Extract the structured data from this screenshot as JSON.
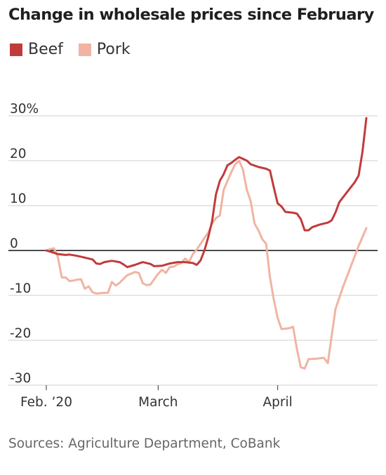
{
  "chart_data": {
    "type": "line",
    "title": "Change in wholesale prices since February",
    "xlabel": "",
    "ylabel": "",
    "x_range": [
      "2020-02-01",
      "2020-04-26"
    ],
    "xticks": [
      {
        "date": "2020-02-01",
        "label": "Feb. ’20"
      },
      {
        "date": "2020-03-01",
        "label": "March"
      },
      {
        "date": "2020-04-01",
        "label": "April"
      }
    ],
    "ylim": [
      -30,
      30
    ],
    "yticks": [
      {
        "value": 30,
        "label": "30%"
      },
      {
        "value": 20,
        "label": "20"
      },
      {
        "value": 10,
        "label": "10"
      },
      {
        "value": 0,
        "label": "0"
      },
      {
        "value": -10,
        "label": "-10"
      },
      {
        "value": -20,
        "label": "-20"
      },
      {
        "value": -30,
        "label": "-30"
      }
    ],
    "grid": true,
    "legend_position": "top-left",
    "series": [
      {
        "name": "Beef",
        "color": "#c13b3b",
        "points": [
          [
            "2020-02-01",
            0.0
          ],
          [
            "2020-02-04",
            -0.8
          ],
          [
            "2020-02-06",
            -1.0
          ],
          [
            "2020-02-07",
            -0.9
          ],
          [
            "2020-02-09",
            -1.2
          ],
          [
            "2020-02-11",
            -1.6
          ],
          [
            "2020-02-13",
            -2.0
          ],
          [
            "2020-02-14",
            -2.9
          ],
          [
            "2020-02-15",
            -3.0
          ],
          [
            "2020-02-16",
            -2.6
          ],
          [
            "2020-02-18",
            -2.3
          ],
          [
            "2020-02-20",
            -2.6
          ],
          [
            "2020-02-21",
            -3.1
          ],
          [
            "2020-02-22",
            -3.7
          ],
          [
            "2020-02-24",
            -3.2
          ],
          [
            "2020-02-26",
            -2.6
          ],
          [
            "2020-02-28",
            -3.0
          ],
          [
            "2020-02-29",
            -3.5
          ],
          [
            "2020-03-02",
            -3.4
          ],
          [
            "2020-03-04",
            -2.9
          ],
          [
            "2020-03-06",
            -2.6
          ],
          [
            "2020-03-08",
            -2.6
          ],
          [
            "2020-03-10",
            -2.8
          ],
          [
            "2020-03-11",
            -3.2
          ],
          [
            "2020-03-12",
            -2.2
          ],
          [
            "2020-03-13",
            0.0
          ],
          [
            "2020-03-14",
            3.0
          ],
          [
            "2020-03-15",
            6.5
          ],
          [
            "2020-03-16",
            12.5
          ],
          [
            "2020-03-17",
            15.5
          ],
          [
            "2020-03-18",
            17.0
          ],
          [
            "2020-03-19",
            19.0
          ],
          [
            "2020-03-20",
            19.5
          ],
          [
            "2020-03-21",
            20.2
          ],
          [
            "2020-03-22",
            20.8
          ],
          [
            "2020-03-23",
            20.4
          ],
          [
            "2020-03-24",
            20.0
          ],
          [
            "2020-03-25",
            19.2
          ],
          [
            "2020-03-27",
            18.6
          ],
          [
            "2020-03-29",
            18.2
          ],
          [
            "2020-03-30",
            17.8
          ],
          [
            "2020-03-31",
            14.0
          ],
          [
            "2020-04-01",
            10.5
          ],
          [
            "2020-04-02",
            9.8
          ],
          [
            "2020-04-03",
            8.6
          ],
          [
            "2020-04-05",
            8.4
          ],
          [
            "2020-04-06",
            8.2
          ],
          [
            "2020-04-07",
            7.0
          ],
          [
            "2020-04-08",
            4.5
          ],
          [
            "2020-04-09",
            4.5
          ],
          [
            "2020-04-10",
            5.2
          ],
          [
            "2020-04-12",
            5.8
          ],
          [
            "2020-04-14",
            6.2
          ],
          [
            "2020-04-15",
            6.7
          ],
          [
            "2020-04-16",
            8.5
          ],
          [
            "2020-04-17",
            10.8
          ],
          [
            "2020-04-19",
            13.0
          ],
          [
            "2020-04-21",
            15.2
          ],
          [
            "2020-04-22",
            16.7
          ],
          [
            "2020-04-23",
            22.0
          ],
          [
            "2020-04-24",
            29.5
          ]
        ]
      },
      {
        "name": "Pork",
        "color": "#f0b4a2",
        "points": [
          [
            "2020-02-01",
            0.0
          ],
          [
            "2020-02-02",
            0.3
          ],
          [
            "2020-02-03",
            0.5
          ],
          [
            "2020-02-04",
            -1.5
          ],
          [
            "2020-02-05",
            -6.0
          ],
          [
            "2020-02-06",
            -6.0
          ],
          [
            "2020-02-07",
            -6.8
          ],
          [
            "2020-02-08",
            -6.7
          ],
          [
            "2020-02-09",
            -6.5
          ],
          [
            "2020-02-10",
            -6.4
          ],
          [
            "2020-02-11",
            -8.5
          ],
          [
            "2020-02-12",
            -8.0
          ],
          [
            "2020-02-13",
            -9.3
          ],
          [
            "2020-02-14",
            -9.6
          ],
          [
            "2020-02-15",
            -9.5
          ],
          [
            "2020-02-17",
            -9.4
          ],
          [
            "2020-02-18",
            -7.0
          ],
          [
            "2020-02-19",
            -7.8
          ],
          [
            "2020-02-20",
            -7.2
          ],
          [
            "2020-02-22",
            -5.5
          ],
          [
            "2020-02-24",
            -4.8
          ],
          [
            "2020-02-25",
            -5.0
          ],
          [
            "2020-02-26",
            -7.3
          ],
          [
            "2020-02-27",
            -7.7
          ],
          [
            "2020-02-28",
            -7.6
          ],
          [
            "2020-03-01",
            -5.2
          ],
          [
            "2020-03-02",
            -4.3
          ],
          [
            "2020-03-03",
            -5.0
          ],
          [
            "2020-03-04",
            -3.7
          ],
          [
            "2020-03-05",
            -3.6
          ],
          [
            "2020-03-06",
            -3.1
          ],
          [
            "2020-03-07",
            -2.8
          ],
          [
            "2020-03-08",
            -1.8
          ],
          [
            "2020-03-09",
            -2.6
          ],
          [
            "2020-03-10",
            -0.8
          ],
          [
            "2020-03-11",
            0.2
          ],
          [
            "2020-03-12",
            1.5
          ],
          [
            "2020-03-13",
            2.8
          ],
          [
            "2020-03-14",
            4.0
          ],
          [
            "2020-03-15",
            6.0
          ],
          [
            "2020-03-16",
            7.2
          ],
          [
            "2020-03-17",
            7.8
          ],
          [
            "2020-03-18",
            13.5
          ],
          [
            "2020-03-19",
            15.5
          ],
          [
            "2020-03-20",
            17.5
          ],
          [
            "2020-03-21",
            19.2
          ],
          [
            "2020-03-22",
            20.0
          ],
          [
            "2020-03-23",
            18.0
          ],
          [
            "2020-03-24",
            13.5
          ],
          [
            "2020-03-25",
            11.0
          ],
          [
            "2020-03-26",
            6.0
          ],
          [
            "2020-03-27",
            4.5
          ],
          [
            "2020-03-28",
            2.5
          ],
          [
            "2020-03-29",
            1.5
          ],
          [
            "2020-03-30",
            -6.0
          ],
          [
            "2020-03-31",
            -11.0
          ],
          [
            "2020-04-01",
            -15.0
          ],
          [
            "2020-04-02",
            -17.5
          ],
          [
            "2020-04-04",
            -17.3
          ],
          [
            "2020-04-05",
            -17.0
          ],
          [
            "2020-04-06",
            -22.0
          ],
          [
            "2020-04-07",
            -26.0
          ],
          [
            "2020-04-08",
            -26.3
          ],
          [
            "2020-04-09",
            -24.2
          ],
          [
            "2020-04-11",
            -24.1
          ],
          [
            "2020-04-13",
            -23.9
          ],
          [
            "2020-04-14",
            -25.1
          ],
          [
            "2020-04-15",
            -19.0
          ],
          [
            "2020-04-16",
            -13.0
          ],
          [
            "2020-04-18",
            -8.0
          ],
          [
            "2020-04-20",
            -3.5
          ],
          [
            "2020-04-22",
            1.0
          ],
          [
            "2020-04-24",
            5.0
          ]
        ]
      }
    ],
    "source": "Sources: Agriculture Department, CoBank"
  }
}
